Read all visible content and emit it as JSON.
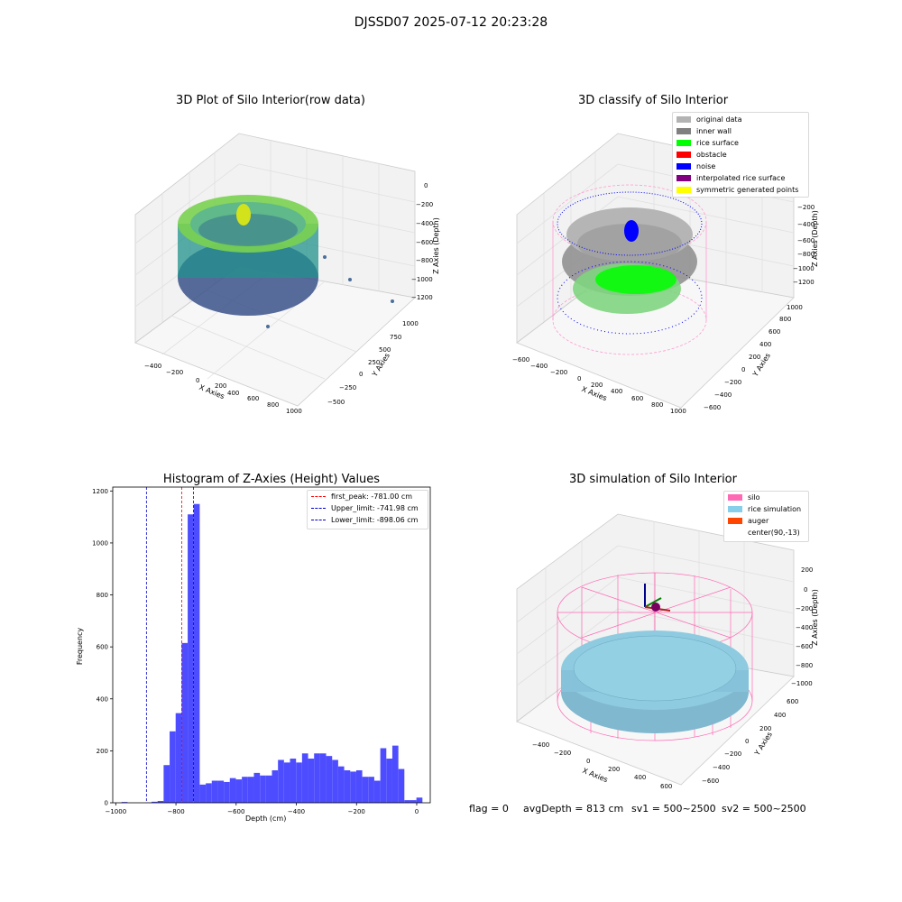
{
  "figure": {
    "title": "DJSSD07 2025-07-12 20:23:28",
    "status": {
      "flag": "flag = 0",
      "avg_depth": "avgDepth = 813 cm",
      "sv1": "sv1 = 500~2500",
      "sv2": "sv2 = 500~2500"
    }
  },
  "panel_raw": {
    "title": "3D Plot of Silo Interior(row data)",
    "x_label": "X Axies",
    "y_label": "Y Axies",
    "z_label": "Z Axies (Depth)",
    "x_ticks": [
      "−400",
      "−200",
      "0",
      "200",
      "400",
      "600",
      "800",
      "1000"
    ],
    "y_ticks": [
      "−500",
      "−250",
      "0",
      "250",
      "500",
      "750",
      "1000"
    ],
    "z_ticks": [
      "0",
      "−200",
      "−400",
      "−600",
      "−800",
      "−1000",
      "−1200"
    ],
    "colors": {
      "low": "#3b528b",
      "mid": "#21918c",
      "high": "#7ad151",
      "top": "#d2e21b"
    }
  },
  "panel_classify": {
    "title": "3D classify of Silo Interior",
    "x_label": "X Axies",
    "y_label": "Y Axies",
    "z_label": "Z Axies (Depth)",
    "x_ticks": [
      "−600",
      "−400",
      "−200",
      "0",
      "200",
      "400",
      "600",
      "800",
      "1000"
    ],
    "y_ticks": [
      "−600",
      "−400",
      "−200",
      "0",
      "200",
      "400",
      "600",
      "800",
      "1000"
    ],
    "z_ticks": [
      "0",
      "−200",
      "−400",
      "−600",
      "−800",
      "−1000",
      "−1200"
    ],
    "legend": [
      {
        "label": "original data",
        "color": "#b3b3b3"
      },
      {
        "label": "inner wall",
        "color": "#808080"
      },
      {
        "label": "rice surface",
        "color": "#00ff00"
      },
      {
        "label": "obstacle",
        "color": "#ff0000"
      },
      {
        "label": "noise",
        "color": "#0000ff"
      },
      {
        "label": "interpolated rice surface",
        "color": "#800080"
      },
      {
        "label": "symmetric generated points",
        "color": "#ffff00"
      }
    ]
  },
  "panel_sim": {
    "title": "3D simulation of Silo Interior",
    "x_label": "X Axies",
    "y_label": "Y Axies",
    "z_label": "Z Axies (Depth)",
    "x_ticks": [
      "−400",
      "−200",
      "0",
      "200",
      "400",
      "600"
    ],
    "y_ticks": [
      "−600",
      "−400",
      "−200",
      "0",
      "200",
      "400",
      "600"
    ],
    "z_ticks": [
      "200",
      "0",
      "−200",
      "−400",
      "−600",
      "−800",
      "−1000"
    ],
    "legend": [
      {
        "label": "silo",
        "color": "#ff69b4"
      },
      {
        "label": "rice simulation",
        "color": "#87ceeb"
      },
      {
        "label": "auger",
        "color": "#ff4500"
      },
      {
        "label": "center(90,-13)",
        "color": "#ffffff"
      }
    ]
  },
  "chart_data": [
    {
      "type": "bar",
      "title": "Histogram of Z-Axies (Height) Values",
      "xlabel": "Depth (cm)",
      "ylabel": "Frequency",
      "xlim": [
        -1010,
        45
      ],
      "ylim": [
        0,
        1215
      ],
      "x_ticks": [
        -1000,
        -800,
        -600,
        -400,
        -200,
        0
      ],
      "y_ticks": [
        0,
        200,
        400,
        600,
        800,
        1000,
        1200
      ],
      "bar_color": "#4d4dff",
      "bin_start": -981,
      "bin_width": 20,
      "values": [
        3,
        0,
        0,
        0,
        1,
        4,
        7,
        145,
        275,
        345,
        615,
        1110,
        1150,
        70,
        75,
        85,
        85,
        80,
        95,
        90,
        100,
        100,
        115,
        105,
        105,
        125,
        165,
        155,
        170,
        155,
        190,
        170,
        190,
        190,
        180,
        165,
        140,
        125,
        120,
        125,
        100,
        100,
        85,
        210,
        170,
        220,
        130,
        10,
        10,
        20
      ],
      "lines": [
        {
          "label": "first_peak: -781.00 cm",
          "x": -781.0,
          "color": "#ff0000"
        },
        {
          "label": "Upper_limit: -741.98 cm",
          "x": -741.98,
          "color": "#0000cc"
        },
        {
          "label": "Lower_limit: -898.06 cm",
          "x": -898.06,
          "color": "#0000cc"
        }
      ],
      "legend_position": "top-right"
    }
  ]
}
